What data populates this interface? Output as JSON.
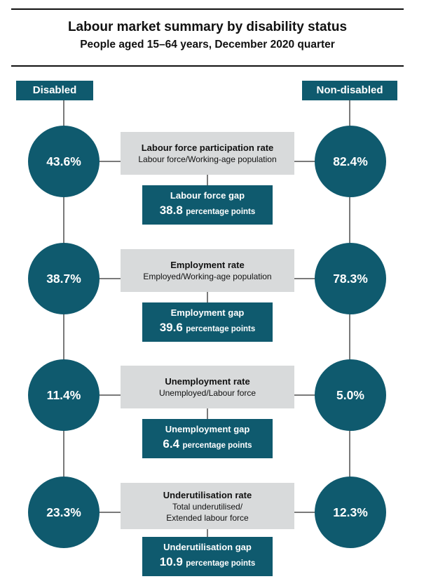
{
  "title": "Labour market summary by disability status",
  "subtitle": "People aged 15–64 years, December 2020 quarter",
  "labels": {
    "left": "Disabled",
    "right": "Non-disabled"
  },
  "colors": {
    "primary": "#0f5a6e",
    "box": "#d8dadb",
    "connector": "#7a7a7a"
  },
  "rows": [
    {
      "disabled": "43.6%",
      "non_disabled": "82.4%",
      "rate_title": "Labour force participation rate",
      "rate_def": "Labour force/Working-age population",
      "gap_title": "Labour force gap",
      "gap_value": "38.8",
      "gap_unit": "percentage points"
    },
    {
      "disabled": "38.7%",
      "non_disabled": "78.3%",
      "rate_title": "Employment rate",
      "rate_def": "Employed/Working-age population",
      "gap_title": "Employment gap",
      "gap_value": "39.6",
      "gap_unit": "percentage points"
    },
    {
      "disabled": "11.4%",
      "non_disabled": "5.0%",
      "rate_title": "Unemployment rate",
      "rate_def": "Unemployed/Labour force",
      "gap_title": "Unemployment gap",
      "gap_value": "6.4",
      "gap_unit": "percentage points"
    },
    {
      "disabled": "23.3%",
      "non_disabled": "12.3%",
      "rate_title": "Underutilisation rate",
      "rate_def": "Total underutilised/ Extended labour force",
      "gap_title": "Underutilisation gap",
      "gap_value": "10.9",
      "gap_unit": "percentage points"
    }
  ]
}
